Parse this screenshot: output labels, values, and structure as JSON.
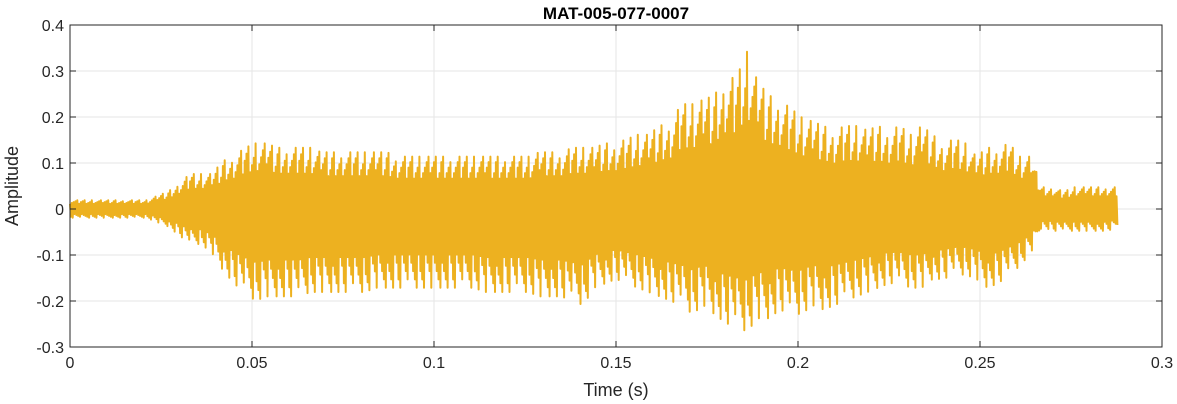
{
  "chart_data": {
    "type": "line",
    "title": "MAT-005-077-0007",
    "xlabel": "Time (s)",
    "ylabel": "Amplitude",
    "xlim": [
      0,
      0.3
    ],
    "ylim": [
      -0.3,
      0.4
    ],
    "xticks": [
      0,
      0.05,
      0.1,
      0.15,
      0.2,
      0.25,
      0.3
    ],
    "xtick_labels": [
      "0",
      "0.05",
      "0.1",
      "0.15",
      "0.2",
      "0.25",
      "0.3"
    ],
    "yticks": [
      -0.3,
      -0.2,
      -0.1,
      0,
      0.1,
      0.2,
      0.3,
      0.4
    ],
    "ytick_labels": [
      "-0.3",
      "-0.2",
      "-0.1",
      "0",
      "0.1",
      "0.2",
      "0.3",
      "0.4"
    ],
    "grid": true,
    "line_color": "#EDB120",
    "series": [
      {
        "x": [
          0.0,
          0.003,
          0.006,
          0.009,
          0.012,
          0.015,
          0.018,
          0.021,
          0.024,
          0.027,
          0.03,
          0.033,
          0.036,
          0.039,
          0.042,
          0.045,
          0.048,
          0.051,
          0.054,
          0.057,
          0.06,
          0.063,
          0.066,
          0.069,
          0.072,
          0.075,
          0.078,
          0.081,
          0.084,
          0.087,
          0.09,
          0.093,
          0.096,
          0.099,
          0.102,
          0.105,
          0.108,
          0.111,
          0.114,
          0.117,
          0.12,
          0.123,
          0.126,
          0.129,
          0.132,
          0.135,
          0.138,
          0.141,
          0.144,
          0.147,
          0.15,
          0.153,
          0.156,
          0.159,
          0.162,
          0.165,
          0.168,
          0.171,
          0.174,
          0.177,
          0.18,
          0.183,
          0.186,
          0.189,
          0.192,
          0.195,
          0.198,
          0.201,
          0.204,
          0.207,
          0.21,
          0.213,
          0.216,
          0.219,
          0.222,
          0.225,
          0.228,
          0.231,
          0.234,
          0.237,
          0.24,
          0.243,
          0.246,
          0.249,
          0.252,
          0.255,
          0.258,
          0.261,
          0.264,
          0.267,
          0.27,
          0.273,
          0.276,
          0.279,
          0.282,
          0.285,
          0.288
        ],
        "max": [
          0.02,
          0.02,
          0.02,
          0.02,
          0.02,
          0.02,
          0.02,
          0.02,
          0.03,
          0.04,
          0.06,
          0.08,
          0.08,
          0.08,
          0.11,
          0.12,
          0.14,
          0.15,
          0.15,
          0.14,
          0.14,
          0.14,
          0.14,
          0.13,
          0.13,
          0.13,
          0.13,
          0.13,
          0.13,
          0.13,
          0.12,
          0.12,
          0.12,
          0.12,
          0.12,
          0.12,
          0.12,
          0.12,
          0.12,
          0.12,
          0.12,
          0.12,
          0.12,
          0.13,
          0.13,
          0.13,
          0.14,
          0.14,
          0.14,
          0.15,
          0.15,
          0.16,
          0.17,
          0.17,
          0.19,
          0.2,
          0.24,
          0.24,
          0.25,
          0.26,
          0.3,
          0.3,
          0.36,
          0.29,
          0.26,
          0.25,
          0.23,
          0.21,
          0.2,
          0.19,
          0.18,
          0.19,
          0.19,
          0.18,
          0.19,
          0.18,
          0.19,
          0.17,
          0.19,
          0.17,
          0.15,
          0.16,
          0.15,
          0.12,
          0.14,
          0.14,
          0.15,
          0.12,
          0.12,
          0.05,
          0.05,
          0.04,
          0.05,
          0.05,
          0.05,
          0.05,
          0.05
        ],
        "min": [
          -0.02,
          -0.02,
          -0.02,
          -0.02,
          -0.02,
          -0.02,
          -0.02,
          -0.02,
          -0.03,
          -0.04,
          -0.06,
          -0.08,
          -0.08,
          -0.1,
          -0.14,
          -0.17,
          -0.19,
          -0.21,
          -0.2,
          -0.2,
          -0.2,
          -0.2,
          -0.19,
          -0.19,
          -0.19,
          -0.19,
          -0.19,
          -0.19,
          -0.18,
          -0.18,
          -0.18,
          -0.18,
          -0.18,
          -0.18,
          -0.18,
          -0.18,
          -0.18,
          -0.18,
          -0.19,
          -0.19,
          -0.19,
          -0.19,
          -0.19,
          -0.2,
          -0.2,
          -0.2,
          -0.21,
          -0.22,
          -0.18,
          -0.17,
          -0.16,
          -0.17,
          -0.18,
          -0.19,
          -0.2,
          -0.21,
          -0.22,
          -0.24,
          -0.22,
          -0.24,
          -0.26,
          -0.27,
          -0.28,
          -0.25,
          -0.25,
          -0.23,
          -0.24,
          -0.24,
          -0.22,
          -0.23,
          -0.22,
          -0.21,
          -0.2,
          -0.19,
          -0.18,
          -0.17,
          -0.17,
          -0.18,
          -0.18,
          -0.16,
          -0.16,
          -0.15,
          -0.15,
          -0.16,
          -0.18,
          -0.17,
          -0.15,
          -0.13,
          -0.1,
          -0.04,
          -0.05,
          -0.05,
          -0.05,
          -0.05,
          -0.05,
          -0.05,
          -0.04
        ]
      }
    ]
  }
}
